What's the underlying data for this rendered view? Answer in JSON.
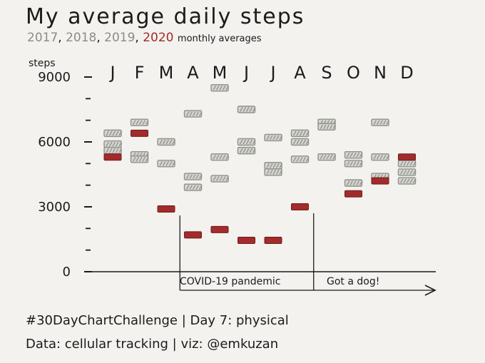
{
  "title": "My average daily steps",
  "subtitle": {
    "years": [
      {
        "text": "2017",
        "color": "#8c8c84"
      },
      {
        "text": "2018",
        "color": "#8c8c84"
      },
      {
        "text": "2019",
        "color": "#8c8c84"
      },
      {
        "text": "2020",
        "color": "#a32b2b"
      }
    ],
    "separator": ",",
    "suffix": "monthly averages"
  },
  "colors": {
    "prior_years": "#8f918a",
    "year_2020": "#a32b2b",
    "ink": "#1b1b1b"
  },
  "chart_data": {
    "type": "scatter",
    "marker": "dash",
    "ylabel": "steps",
    "ylim": [
      0,
      9000
    ],
    "yticks": [
      {
        "value": 0,
        "label": "0"
      },
      {
        "value": 3000,
        "label": "3000"
      },
      {
        "value": 6000,
        "label": "6000"
      },
      {
        "value": 9000,
        "label": "9000"
      }
    ],
    "yminor": [
      1000,
      2000,
      4000,
      5000,
      7000,
      8000
    ],
    "categories": [
      "J",
      "F",
      "M",
      "A",
      "M",
      "J",
      "J",
      "A",
      "S",
      "O",
      "N",
      "D"
    ],
    "prior_years_series": [
      {
        "month": "J",
        "values": [
          6400,
          5900,
          5600
        ]
      },
      {
        "month": "F",
        "values": [
          6900,
          5400,
          5200
        ]
      },
      {
        "month": "M",
        "values": [
          6000,
          5000
        ]
      },
      {
        "month": "A",
        "values": [
          7300,
          4400,
          3900
        ]
      },
      {
        "month": "M",
        "values": [
          8500,
          5300,
          4300
        ]
      },
      {
        "month": "J",
        "values": [
          7500,
          6000,
          5600
        ]
      },
      {
        "month": "J",
        "values": [
          6200,
          4900,
          4600
        ]
      },
      {
        "month": "A",
        "values": [
          6400,
          6000,
          5200
        ]
      },
      {
        "month": "S",
        "values": [
          6900,
          6700,
          5300
        ]
      },
      {
        "month": "O",
        "values": [
          5400,
          5000,
          4100
        ]
      },
      {
        "month": "N",
        "values": [
          6900,
          5300,
          4400
        ]
      },
      {
        "month": "D",
        "values": [
          5000,
          4600,
          4200
        ]
      }
    ],
    "series_2020": {
      "name": "2020",
      "values": [
        5300,
        6400,
        2900,
        1700,
        1950,
        1450,
        1450,
        3000,
        null,
        3600,
        4200,
        5300
      ]
    },
    "annotations": [
      {
        "text": "COVID-19 pandemic",
        "from_month": 2,
        "to_month": 7
      },
      {
        "text": "Got a dog!",
        "from_month": 7,
        "to_month": 11
      }
    ]
  },
  "footer": {
    "line1": "#30DayChartChallenge | Day 7: physical",
    "line2": "Data: cellular tracking | viz: @emkuzan"
  }
}
